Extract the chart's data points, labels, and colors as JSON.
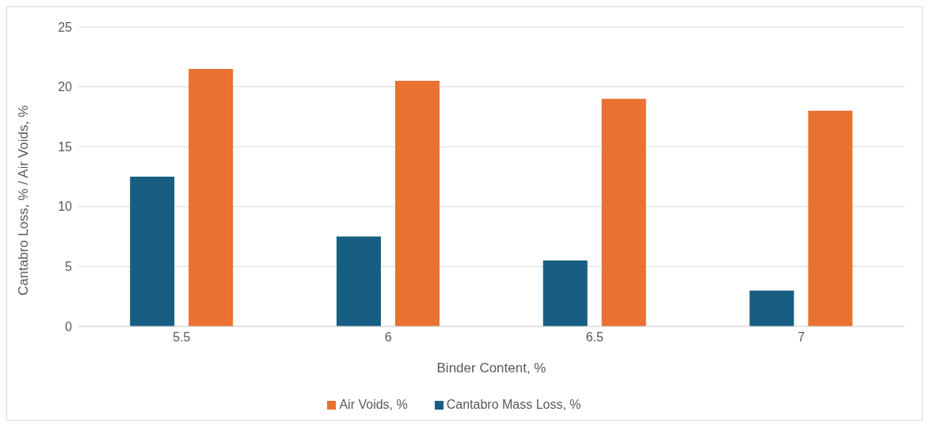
{
  "chart_data": {
    "type": "bar",
    "xlabel": "Binder Content, %",
    "ylabel": "Cantabro Loss, % / Air Voids, %",
    "categories": [
      "5.5",
      "6",
      "6.5",
      "7"
    ],
    "series": [
      {
        "name": "Cantabro Mass Loss, %",
        "color": "#175e82",
        "values": [
          12.5,
          7.5,
          5.5,
          3
        ]
      },
      {
        "name": "Air Voids, %",
        "color": "#e97132",
        "values": [
          21.5,
          20.5,
          19,
          18
        ]
      }
    ],
    "ylim": [
      0,
      25
    ],
    "yticks": [
      0,
      5,
      10,
      15,
      20,
      25
    ],
    "grid": "y",
    "legend": "bottom"
  }
}
